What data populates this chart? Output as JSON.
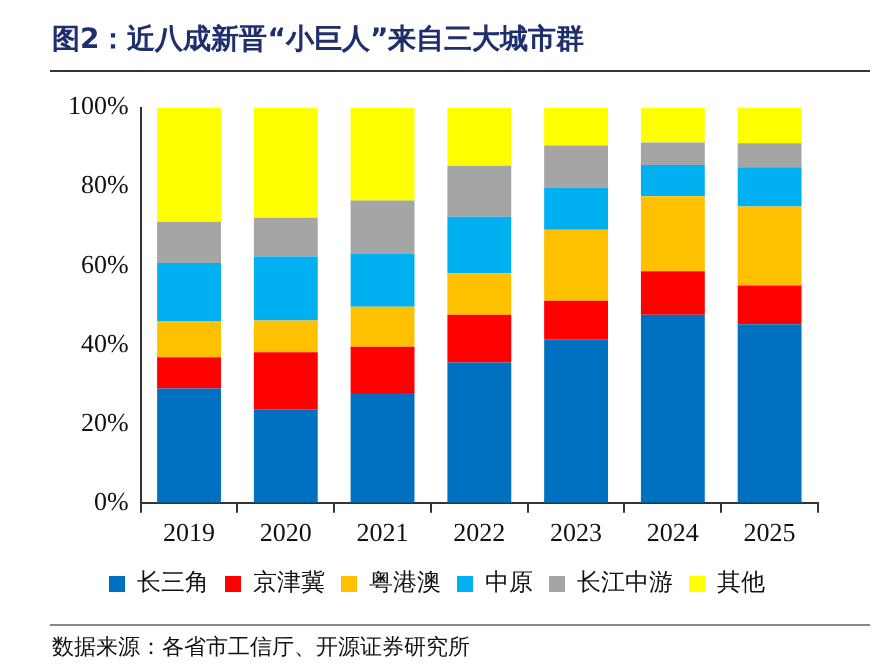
{
  "chart_data": {
    "type": "bar",
    "title": "图2：近八成新晋“小巨人”来自三大城市群",
    "stacked": true,
    "legend": "bottom",
    "categories": [
      "2019",
      "2020",
      "2021",
      "2022",
      "2023",
      "2024",
      "2025"
    ],
    "series": [
      {
        "name": "长三角",
        "color": "#0070c0",
        "values": [
          28.9,
          23.7,
          27.8,
          35.5,
          41.4,
          47.6,
          45.2
        ]
      },
      {
        "name": "京津冀",
        "color": "#ff0000",
        "values": [
          7.9,
          14.4,
          11.7,
          12.1,
          9.7,
          11.0,
          9.8
        ]
      },
      {
        "name": "粤港澳",
        "color": "#ffc000",
        "values": [
          9.2,
          8.0,
          10.1,
          10.5,
          18.0,
          19.0,
          20.0
        ]
      },
      {
        "name": "中原",
        "color": "#00b0f0",
        "values": [
          14.7,
          16.2,
          13.5,
          14.3,
          10.7,
          7.9,
          9.9
        ]
      },
      {
        "name": "长江中游",
        "color": "#a5a5a5",
        "values": [
          10.4,
          9.8,
          13.4,
          12.9,
          10.6,
          5.7,
          6.1
        ]
      },
      {
        "name": "其他",
        "color": "#ffff00",
        "values": [
          28.9,
          27.9,
          23.5,
          14.7,
          9.6,
          8.8,
          9.0
        ]
      }
    ],
    "ylim": [
      0,
      100
    ],
    "yticks": [
      {
        "value": 0,
        "label": "0%"
      },
      {
        "value": 20,
        "label": "20%"
      },
      {
        "value": 40,
        "label": "40%"
      },
      {
        "value": 60,
        "label": "60%"
      },
      {
        "value": 80,
        "label": "80%"
      },
      {
        "value": 100,
        "label": "100%"
      }
    ],
    "annotations": [
      "数据来源：各省市工信厅、开源证券研究所"
    ]
  }
}
